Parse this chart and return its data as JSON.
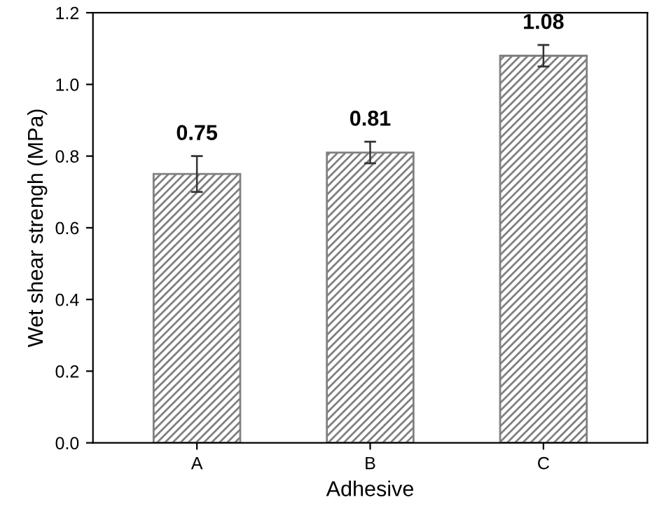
{
  "chart_data": {
    "type": "bar",
    "xlabel": "Adhesive",
    "ylabel": "Wet shear strengh (MPa)",
    "categories": [
      "A",
      "B",
      "C"
    ],
    "values": [
      0.75,
      0.81,
      1.08
    ],
    "errors": [
      0.05,
      0.03,
      0.03
    ],
    "color": "#808080",
    "ylim": [
      0.0,
      1.2
    ],
    "yticks": [
      {
        "value": 0,
        "label": "0.0"
      },
      0.2,
      0.4,
      0.6,
      0.8,
      {
        "value": 1,
        "label": "1.0"
      },
      1.2
    ],
    "data_labels": true,
    "grid": false,
    "legend": false
  }
}
